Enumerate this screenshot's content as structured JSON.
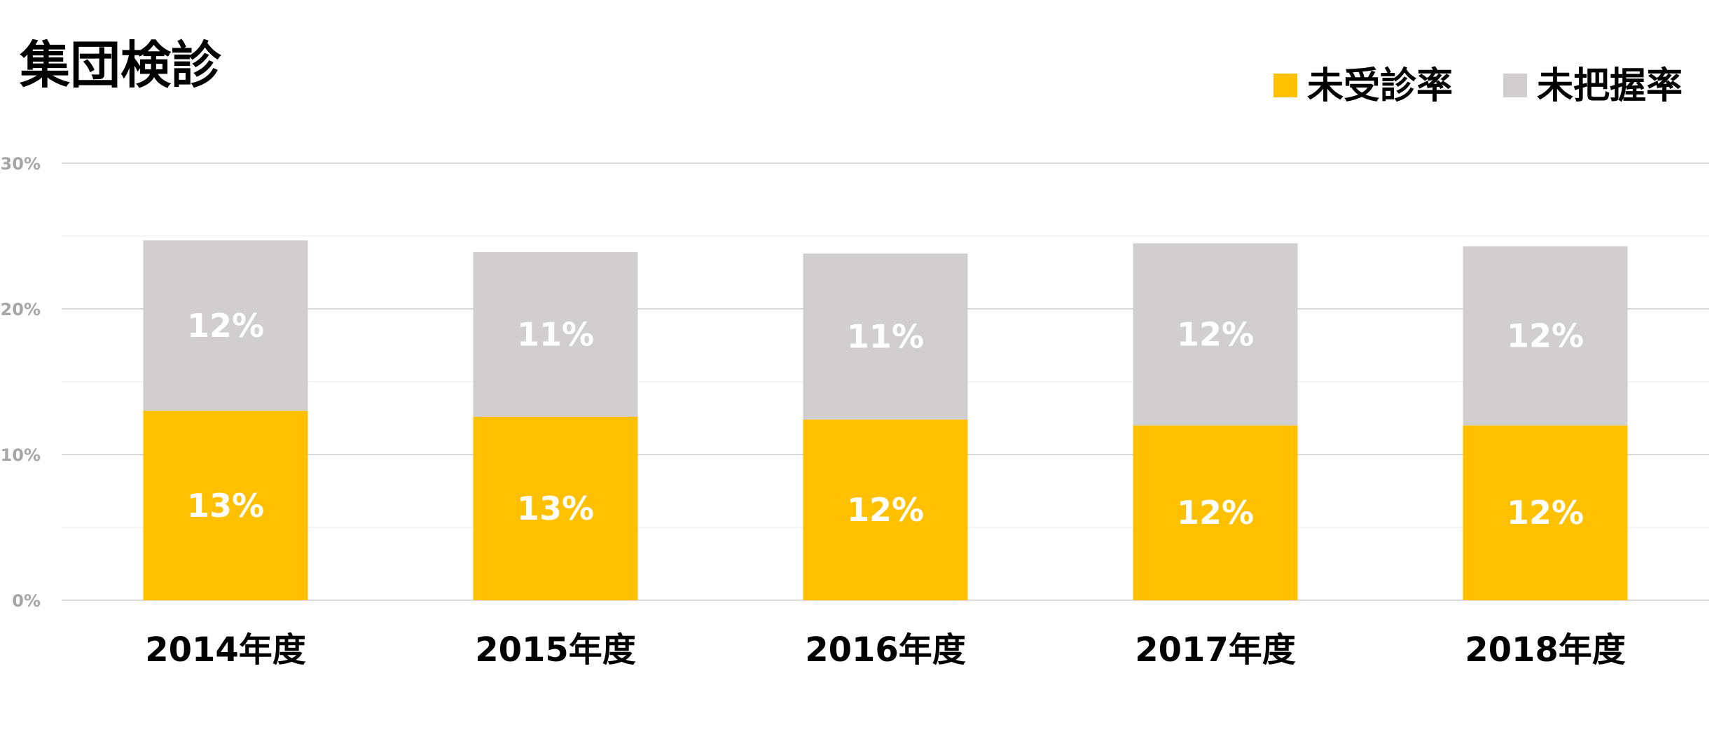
{
  "chart_data": {
    "type": "bar",
    "stacked": true,
    "title": "集団検診",
    "categories": [
      "2014年度",
      "2015年度",
      "2016年度",
      "2017年度",
      "2018年度"
    ],
    "series": [
      {
        "name": "未受診率",
        "color": "#FFC000",
        "values": [
          13.0,
          12.6,
          12.4,
          12.0,
          12.0
        ],
        "labels": [
          "13%",
          "13%",
          "12%",
          "12%",
          "12%"
        ]
      },
      {
        "name": "未把握率",
        "color": "#D0CECE",
        "values": [
          11.7,
          11.3,
          11.4,
          12.5,
          12.3
        ],
        "labels": [
          "12%",
          "11%",
          "11%",
          "12%",
          "12%"
        ]
      }
    ],
    "ylim": [
      0,
      30
    ],
    "yticks": [
      0,
      10,
      20,
      30
    ],
    "ytick_labels": [
      "0%",
      "10%",
      "20%",
      "30%"
    ],
    "legend_position": "top-right",
    "grid": true
  }
}
